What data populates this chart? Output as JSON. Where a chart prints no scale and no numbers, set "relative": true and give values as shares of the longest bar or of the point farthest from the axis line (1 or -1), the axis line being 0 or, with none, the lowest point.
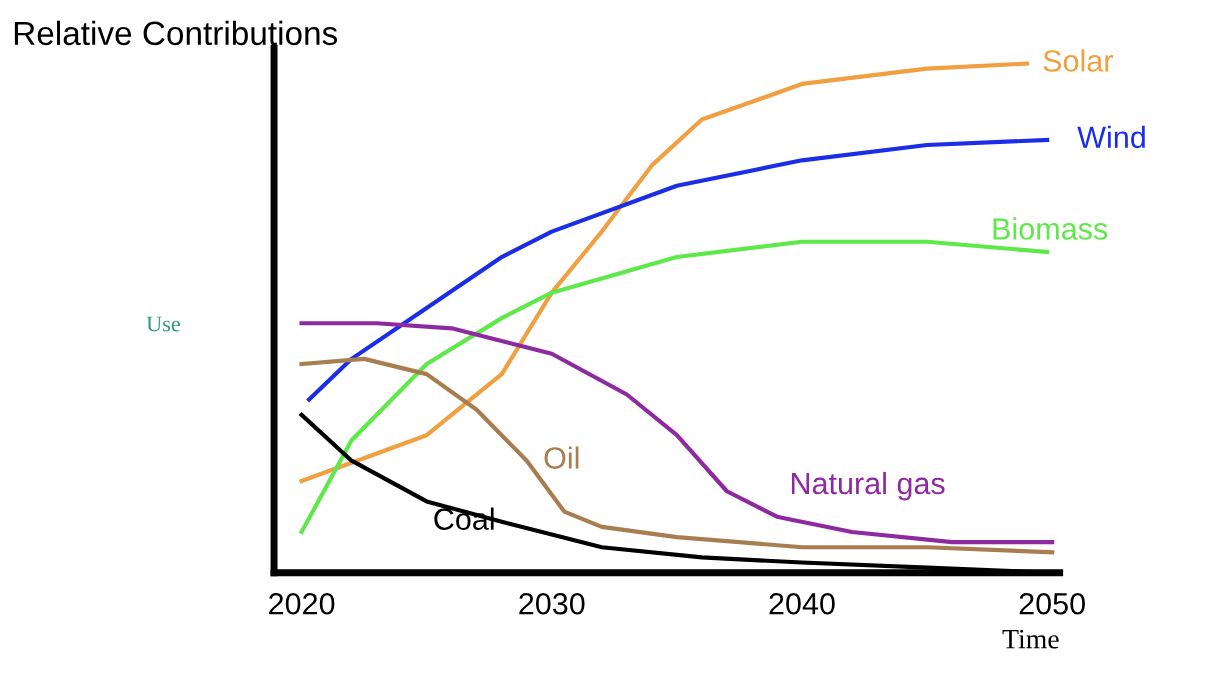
{
  "chart_data": {
    "type": "line",
    "relative": true,
    "ylabel": "Relative Contributions",
    "xlabel": "Time",
    "xlim": [
      2018.9,
      2050.3
    ],
    "xticks": [
      2020,
      2030,
      2040,
      2050
    ],
    "grid": false,
    "legend": false,
    "marker": "none",
    "line_style": "solid",
    "annotations": [
      "Use"
    ],
    "series": [
      {
        "name": "Solar",
        "color": "#f0a040",
        "x": [
          2020,
          2025,
          2028,
          2030,
          2032,
          2034,
          2036,
          2040,
          2045,
          2049
        ],
        "values": [
          0.18,
          0.27,
          0.39,
          0.55,
          0.67,
          0.8,
          0.89,
          0.96,
          0.99,
          1.0
        ]
      },
      {
        "name": "Wind",
        "color": "#1a2ee8",
        "x": [
          2020.3,
          2022,
          2025,
          2028,
          2030,
          2035,
          2040,
          2045,
          2049.8
        ],
        "values": [
          0.34,
          0.42,
          0.52,
          0.62,
          0.67,
          0.76,
          0.81,
          0.84,
          0.85
        ]
      },
      {
        "name": "Biomass",
        "color": "#5ee84a",
        "x": [
          2020,
          2022,
          2025,
          2028,
          2030,
          2035,
          2040,
          2045,
          2049.8
        ],
        "values": [
          0.08,
          0.26,
          0.41,
          0.5,
          0.55,
          0.62,
          0.65,
          0.65,
          0.63
        ]
      },
      {
        "name": "Natural gas",
        "color": "#8e2aa0",
        "x": [
          2020,
          2023,
          2026,
          2030,
          2033,
          2035,
          2037,
          2039,
          2042,
          2046,
          2050
        ],
        "values": [
          0.49,
          0.49,
          0.48,
          0.43,
          0.35,
          0.27,
          0.16,
          0.11,
          0.08,
          0.06,
          0.06
        ]
      },
      {
        "name": "Oil",
        "color": "#a87d50",
        "x": [
          2020,
          2022.5,
          2025,
          2027,
          2029,
          2030.5,
          2032,
          2035,
          2040,
          2045,
          2050
        ],
        "values": [
          0.41,
          0.42,
          0.39,
          0.32,
          0.22,
          0.12,
          0.09,
          0.07,
          0.05,
          0.05,
          0.04
        ]
      },
      {
        "name": "Coal",
        "color": "#000000",
        "x": [
          2020,
          2022,
          2025,
          2028,
          2032,
          2036,
          2040,
          2045,
          2050
        ],
        "values": [
          0.31,
          0.22,
          0.14,
          0.1,
          0.05,
          0.03,
          0.02,
          0.01,
          0.0
        ]
      }
    ]
  }
}
